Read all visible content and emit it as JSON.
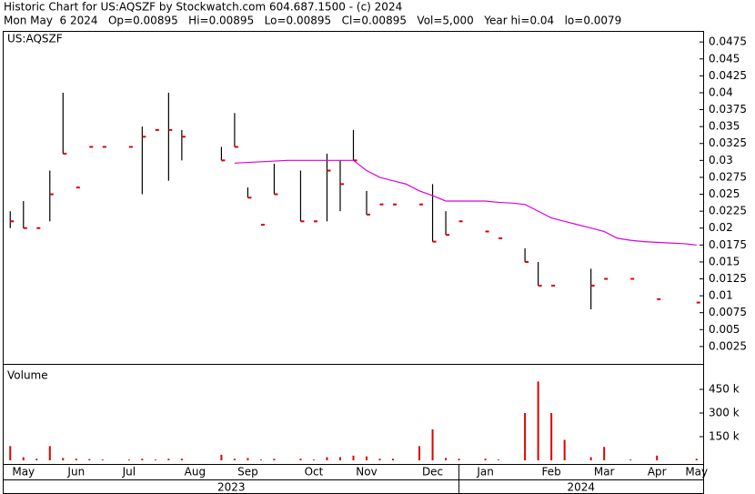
{
  "chart_data": {
    "type": "ohlc",
    "title": "Historic Chart for US:AQSZF by Stockwatch.com 604.687.1500 - (c) 2024",
    "subtitle": "Mon May  6 2024   Op=0.00895   Hi=0.00895   Lo=0.00895   Cl=0.00895   Vol=5,000   Year hi=0.04   lo=0.0079",
    "symbol_label": "US:AQSZF",
    "volume_label": "Volume",
    "categories": [
      null,
      "May",
      null,
      null,
      null,
      "Jun",
      null,
      null,
      null,
      "Jul",
      null,
      null,
      null,
      null,
      "Aug",
      null,
      null,
      null,
      "Sep",
      null,
      null,
      null,
      null,
      "Oct",
      null,
      null,
      null,
      "Nov",
      null,
      null,
      null,
      null,
      "Dec",
      null,
      null,
      null,
      "Jan",
      null,
      null,
      null,
      null,
      "Feb",
      null,
      null,
      null,
      "Mar",
      null,
      null,
      null,
      "Apr",
      null,
      null,
      "May"
    ],
    "years": [
      "2023",
      "2024"
    ],
    "high": [
      0.0225,
      0.024,
      null,
      0.0285,
      0.04,
      null,
      null,
      null,
      null,
      null,
      0.035,
      null,
      0.04,
      0.0345,
      null,
      null,
      0.032,
      0.037,
      0.026,
      null,
      0.0295,
      null,
      0.0285,
      null,
      0.031,
      0.03,
      0.0345,
      0.0255,
      null,
      null,
      null,
      null,
      0.0265,
      0.0225,
      null,
      null,
      null,
      null,
      null,
      0.017,
      0.015,
      null,
      null,
      null,
      0.014,
      null,
      null,
      null,
      null,
      null,
      null,
      null,
      null
    ],
    "low": [
      0.02,
      0.02,
      null,
      0.021,
      0.031,
      null,
      null,
      null,
      null,
      null,
      0.025,
      null,
      0.027,
      0.03,
      null,
      null,
      0.03,
      0.032,
      0.0245,
      null,
      0.025,
      null,
      0.021,
      null,
      0.021,
      0.0225,
      0.03,
      0.022,
      null,
      null,
      null,
      null,
      0.018,
      0.019,
      null,
      null,
      null,
      null,
      null,
      0.015,
      0.0115,
      null,
      null,
      null,
      0.008,
      null,
      null,
      null,
      null,
      null,
      null,
      null,
      null
    ],
    "close": [
      0.021,
      0.02,
      0.02,
      0.025,
      0.031,
      0.026,
      0.032,
      0.032,
      null,
      0.032,
      0.0335,
      0.0345,
      0.0345,
      0.0335,
      null,
      null,
      0.03,
      0.032,
      0.0245,
      0.0205,
      0.025,
      null,
      0.021,
      0.021,
      0.0285,
      0.0265,
      0.03,
      0.022,
      0.0235,
      0.0235,
      null,
      0.0235,
      0.018,
      0.019,
      0.021,
      null,
      0.0195,
      0.0185,
      null,
      0.015,
      0.0115,
      0.0115,
      null,
      null,
      0.0115,
      0.0125,
      null,
      0.0125,
      null,
      0.0095,
      null,
      null,
      0.009
    ],
    "moving_average": [
      null,
      null,
      null,
      null,
      null,
      null,
      null,
      null,
      null,
      null,
      null,
      null,
      null,
      null,
      null,
      null,
      null,
      0.0296,
      0.0297,
      0.0298,
      0.0299,
      0.03,
      0.03,
      0.03,
      0.03,
      0.03,
      0.03,
      0.0285,
      0.0275,
      0.027,
      0.0265,
      0.0255,
      0.0248,
      0.024,
      0.024,
      0.024,
      0.024,
      0.0238,
      0.0237,
      0.0235,
      0.0225,
      0.0215,
      0.021,
      0.0205,
      0.02,
      0.0195,
      0.0185,
      0.0182,
      0.018,
      0.0179,
      0.0178,
      0.0177,
      0.0175
    ],
    "volume": [
      90000,
      20000,
      10000,
      90000,
      15000,
      10000,
      8000,
      5000,
      null,
      5000,
      10000,
      5000,
      10000,
      10000,
      null,
      null,
      35000,
      10000,
      15000,
      5000,
      10000,
      null,
      10000,
      5000,
      20000,
      20000,
      30000,
      25000,
      10000,
      10000,
      null,
      90000,
      196000,
      15000,
      10000,
      null,
      10000,
      5000,
      null,
      300000,
      500000,
      300000,
      130000,
      null,
      20000,
      85000,
      null,
      5000,
      null,
      30000,
      null,
      null,
      10000
    ],
    "ylim": [
      0,
      0.049
    ],
    "yticks": [
      0.0025,
      0.005,
      0.0075,
      0.01,
      0.0125,
      0.015,
      0.0175,
      0.02,
      0.0225,
      0.025,
      0.0275,
      0.03,
      0.0325,
      0.035,
      0.0375,
      0.04,
      0.0425,
      0.045,
      0.0475
    ],
    "y2lim": [
      0,
      600000
    ],
    "y2ticks": [
      {
        "value": 150000,
        "label": "150 k"
      },
      {
        "value": 300000,
        "label": "300 k"
      },
      {
        "value": 450000,
        "label": "450 k"
      }
    ],
    "bar_color": "#000000",
    "close_color": "#dd0000",
    "ma_color": "#dd00dd",
    "volume_color": "#dd0000"
  }
}
